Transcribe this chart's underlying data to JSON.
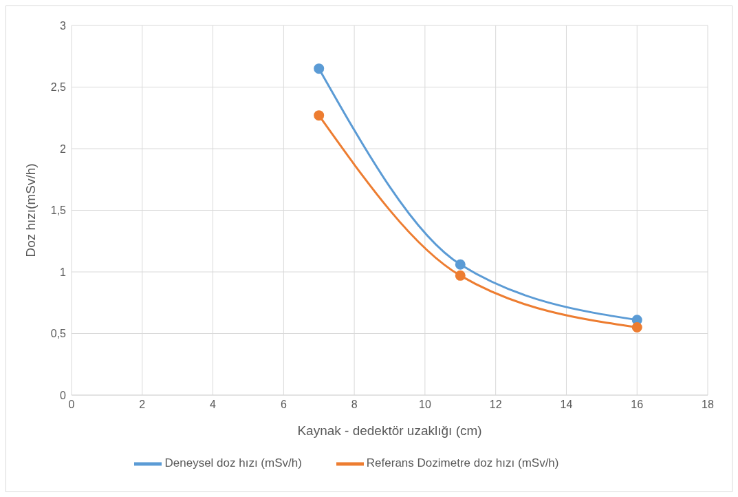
{
  "chart_data": {
    "type": "line",
    "xlabel": "Kaynak - dedektör uzaklığı (cm)",
    "ylabel": "Doz hızı(mSv/h)",
    "x": [
      7,
      11,
      16
    ],
    "series": [
      {
        "name": "Deneysel doz hızı  (mSv/h)",
        "color": "#5b9bd5",
        "values": [
          2.65,
          1.06,
          0.61
        ]
      },
      {
        "name": "Referans Dozimetre doz hızı (mSv/h)",
        "color": "#ed7d31",
        "values": [
          2.27,
          0.97,
          0.55
        ]
      }
    ],
    "xlim": [
      0,
      18
    ],
    "xticks": [
      0,
      2,
      4,
      6,
      8,
      10,
      12,
      14,
      16,
      18
    ],
    "ylim": [
      0,
      3
    ],
    "yticks": [
      0,
      {
        "value": 0.5,
        "label": "0,5"
      },
      1,
      {
        "value": 1.5,
        "label": "1,5"
      },
      2,
      {
        "value": 2.5,
        "label": "2,5"
      },
      3
    ],
    "grid": true,
    "legend": "bottom",
    "marker": "circle",
    "line_style": "solid"
  }
}
